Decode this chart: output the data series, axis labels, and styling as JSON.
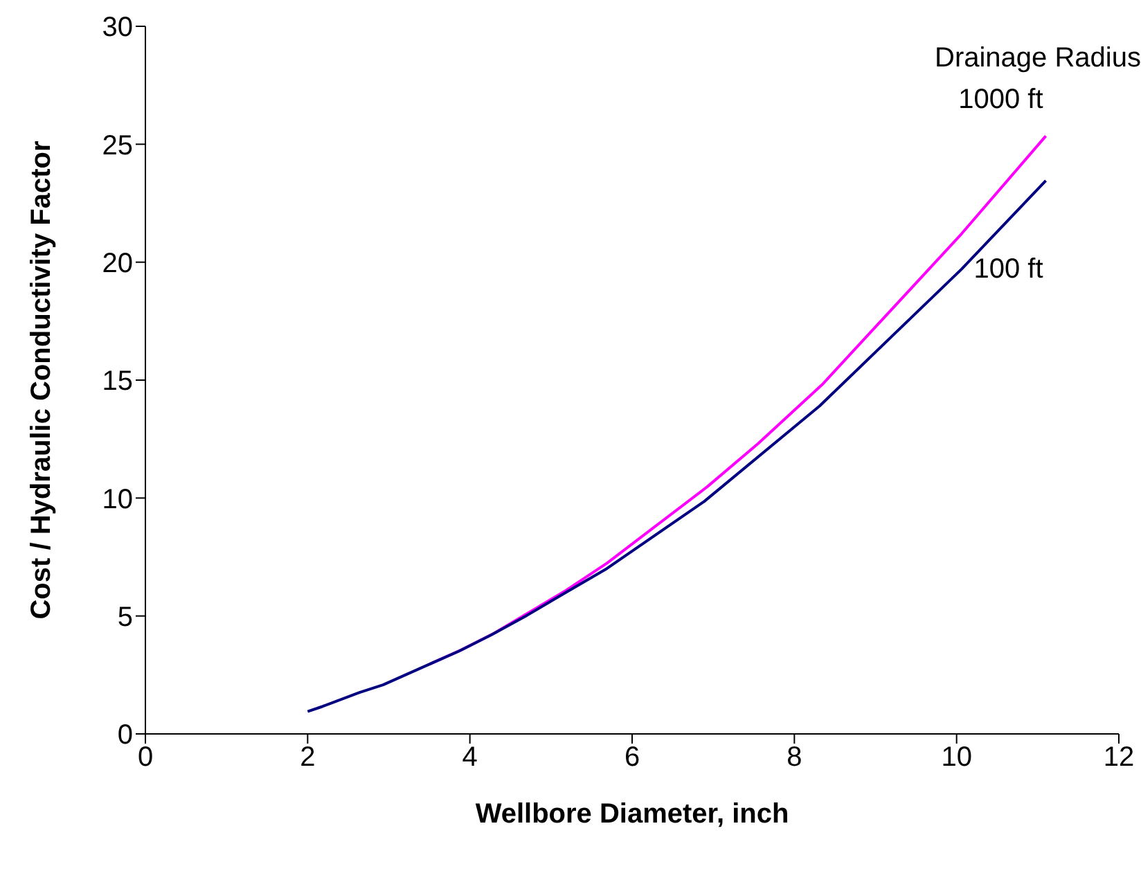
{
  "chart_data": {
    "type": "line",
    "xlabel": "Wellbore Diameter, inch",
    "ylabel": "Cost / Hydraulic Conductivity Factor",
    "legend_title": "Drainage Radius",
    "xlim": [
      0,
      12
    ],
    "xticks": [
      0,
      2,
      4,
      6,
      8,
      10,
      12
    ],
    "ylim": [
      0,
      30
    ],
    "yticks": [
      0,
      5,
      10,
      15,
      20,
      25,
      30
    ],
    "grid": false,
    "legend": false,
    "marker": "none",
    "line_style": "solid",
    "series": [
      {
        "name": "1000 ft",
        "color": "#ff00ff",
        "x": [
          3.51,
          3.9,
          4.3,
          5.16,
          5.69,
          6.93,
          7.55,
          8.34,
          10.06,
          11.1
        ],
        "values": [
          2.97,
          3.57,
          4.27,
          6.03,
          7.24,
          10.49,
          12.3,
          14.8,
          21.2,
          25.35
        ]
      },
      {
        "name": "100 ft",
        "color": "#000080",
        "x": [
          2,
          2.18,
          2.64,
          2.93,
          3.51,
          3.86,
          4.26,
          4.69,
          5.16,
          5.67,
          6.89,
          8.31,
          10.06,
          11.1
        ],
        "values": [
          0.95,
          1.16,
          1.76,
          2.08,
          2.97,
          3.5,
          4.19,
          5.0,
          5.95,
          6.97,
          9.86,
          13.9,
          19.7,
          23.46
        ]
      }
    ]
  }
}
